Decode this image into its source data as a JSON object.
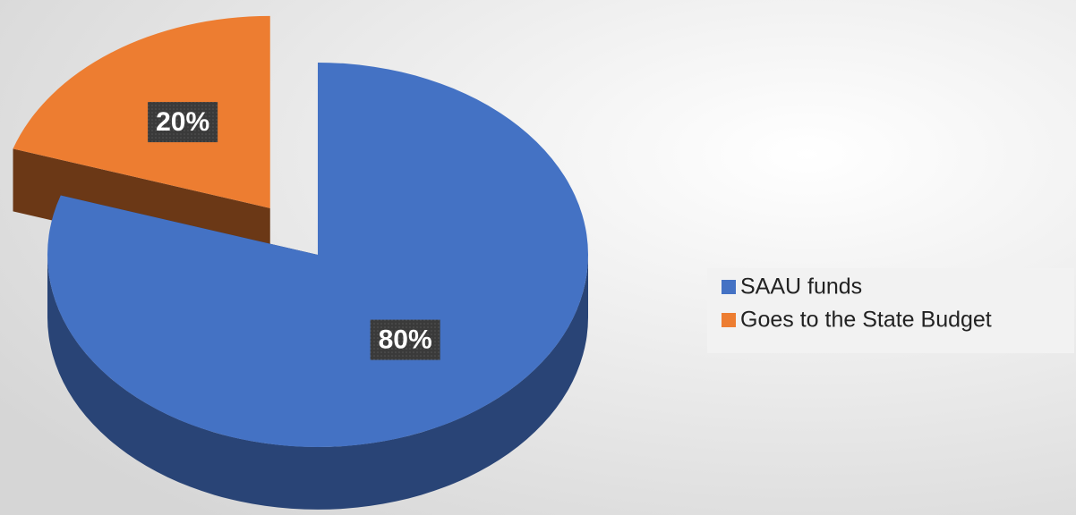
{
  "chart_data": {
    "type": "pie",
    "categories": [
      "SAAU funds",
      "Goes to the State Budget"
    ],
    "values": [
      80,
      20
    ],
    "value_labels": [
      "80%",
      "20%"
    ],
    "colors": [
      "#4472c4",
      "#ed7d31"
    ],
    "legend": "right"
  }
}
